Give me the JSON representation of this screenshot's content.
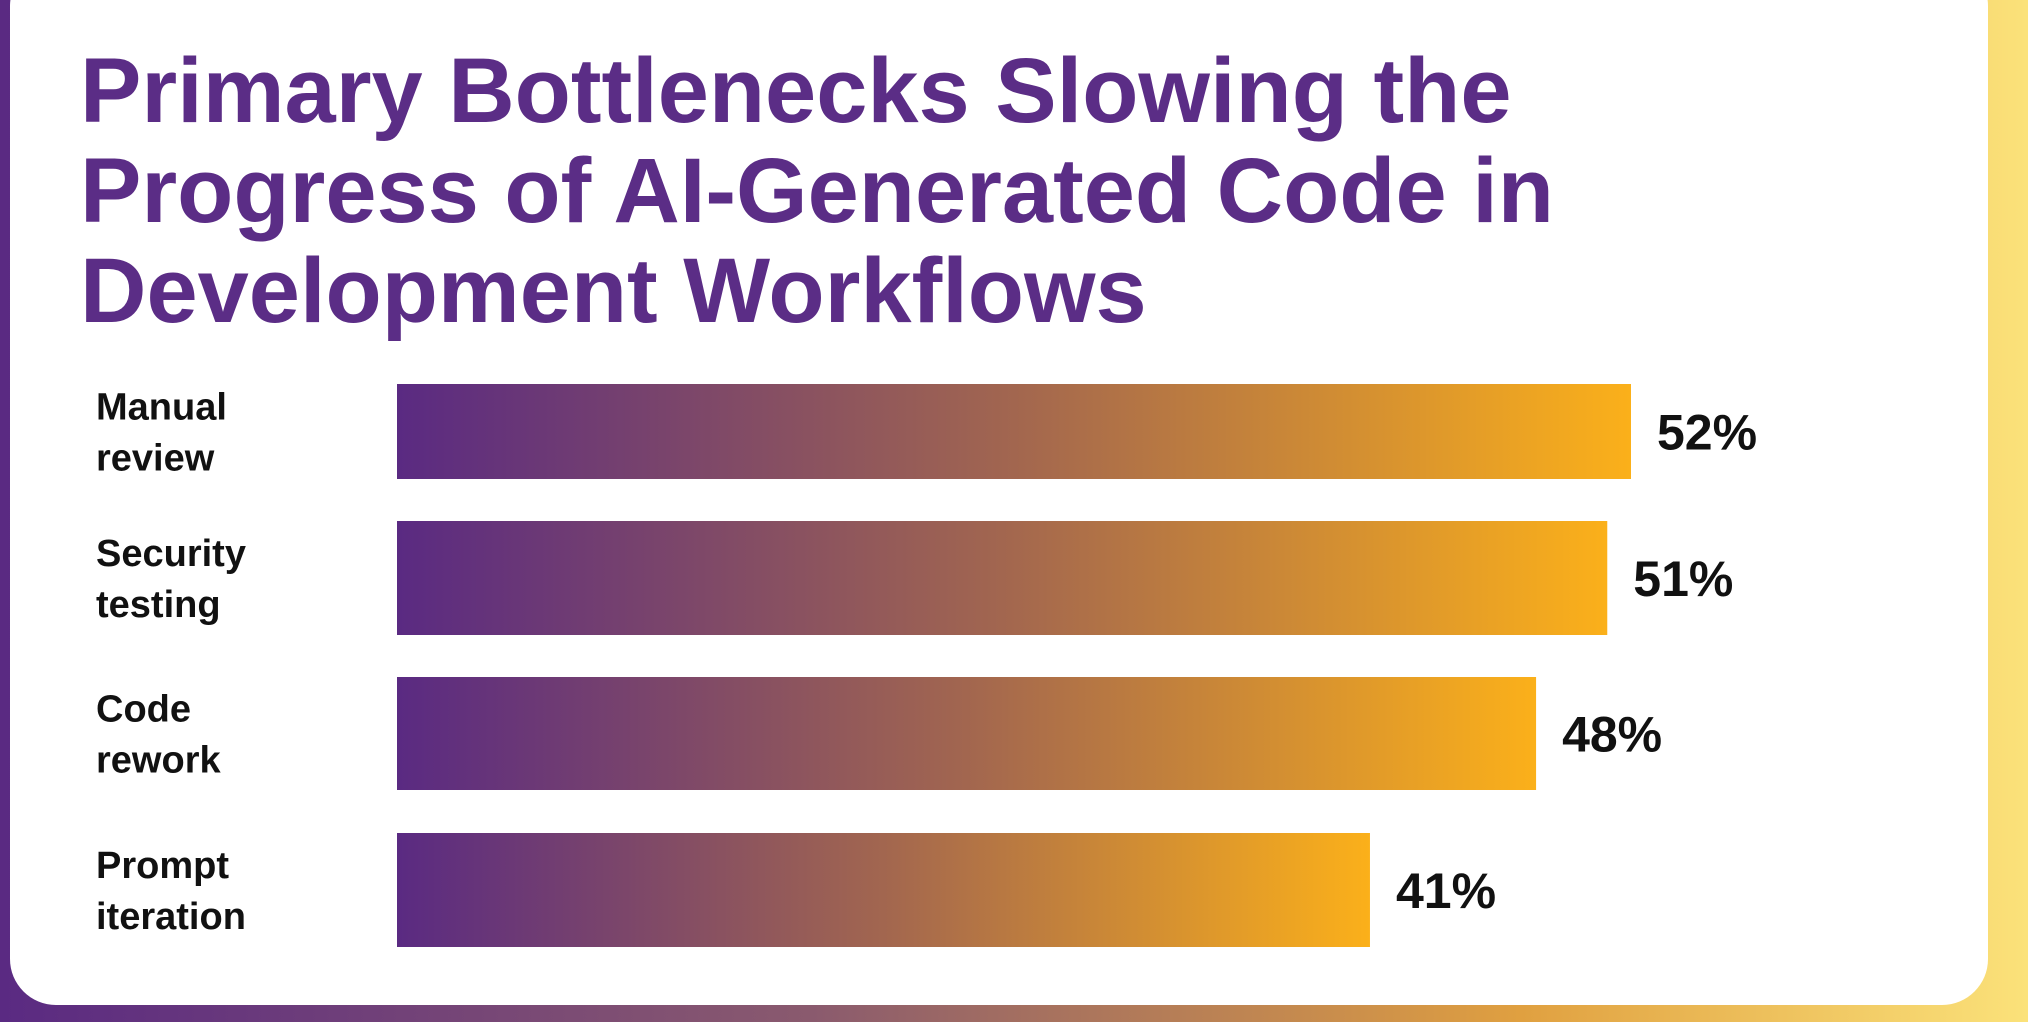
{
  "chart_data": {
    "type": "bar",
    "orientation": "horizontal",
    "title": "Primary Bottlenecks Slowing the Progress of AI-Generated Code in Development Workflows",
    "title_lines": [
      "Primary Bottlenecks Slowing the",
      "Progress of AI-Generated Code in",
      "Development Workflows"
    ],
    "categories": [
      "Manual review",
      "Security testing",
      "Code rework",
      "Prompt iteration"
    ],
    "category_lines": [
      [
        "Manual",
        "review"
      ],
      [
        "Security",
        "testing"
      ],
      [
        "Code",
        "rework"
      ],
      [
        "Prompt",
        "iteration"
      ]
    ],
    "values": [
      52,
      51,
      48,
      41
    ],
    "value_labels": [
      "52%",
      "51%",
      "48%",
      "41%"
    ],
    "unit": "%",
    "xlim": [
      0,
      52
    ],
    "grid": false,
    "legend": "none",
    "colors": {
      "title": "#5b2d86",
      "bar_gradient_start": "#5a2a82",
      "bar_gradient_end": "#fbb01a",
      "label": "#111111"
    }
  }
}
